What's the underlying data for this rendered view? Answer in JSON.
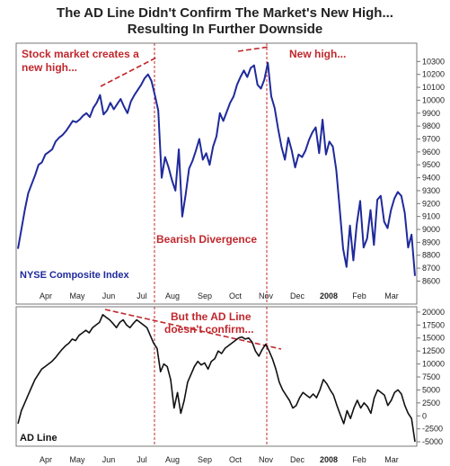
{
  "title_line1": "The AD Line Didn't Confirm The Market's New High...",
  "title_line2": "Resulting In Further Downside",
  "colors": {
    "nyse_line": "#1f2a9b",
    "ad_line": "#111111",
    "annotation": "#c0282d",
    "frame": "#777777"
  },
  "chart_data": [
    {
      "type": "line",
      "label": "NYSE Composite Index",
      "x_tick_labels": [
        "Apr",
        "May",
        "Jun",
        "Jul",
        "Aug",
        "Sep",
        "Oct",
        "Nov",
        "Dec",
        "2008",
        "Feb",
        "Mar"
      ],
      "ylim": [
        8450,
        10400
      ],
      "y_ticks": [
        8600,
        8700,
        8800,
        8900,
        9000,
        9100,
        9200,
        9300,
        9400,
        9500,
        9600,
        9700,
        9800,
        9900,
        10000,
        10100,
        10200,
        10300
      ],
      "grid": false,
      "series": [
        {
          "values": [
            8850,
            9000,
            9150,
            9280,
            9350,
            9420,
            9500,
            9520,
            9580,
            9600,
            9620,
            9680,
            9710,
            9730,
            9760,
            9800,
            9840,
            9830,
            9850,
            9880,
            9900,
            9870,
            9940,
            9980,
            10040,
            9890,
            9920,
            9980,
            9930,
            9970,
            10010,
            9950,
            9900,
            9990,
            10040,
            10080,
            10120,
            10170,
            10200,
            10150,
            10040,
            9920,
            9400,
            9560,
            9480,
            9380,
            9300,
            9620,
            9100,
            9270,
            9470,
            9530,
            9610,
            9700,
            9540,
            9590,
            9500,
            9640,
            9720,
            9900,
            9840,
            9910,
            9980,
            10030,
            10120,
            10180,
            10230,
            10180,
            10250,
            10270,
            10120,
            10090,
            10160,
            10290,
            10030,
            9940,
            9780,
            9640,
            9540,
            9710,
            9610,
            9480,
            9580,
            9560,
            9610,
            9690,
            9750,
            9790,
            9590,
            9850,
            9580,
            9680,
            9640,
            9460,
            9160,
            8850,
            8710,
            9030,
            8760,
            9040,
            9220,
            8860,
            8930,
            9150,
            8880,
            9230,
            9260,
            9060,
            9010,
            9150,
            9240,
            9290,
            9260,
            9130,
            8860,
            8960,
            8640
          ]
        }
      ]
    },
    {
      "type": "line",
      "label": "AD Line",
      "x_tick_labels": [
        "Apr",
        "May",
        "Jun",
        "Jul",
        "Aug",
        "Sep",
        "Oct",
        "Nov",
        "Dec",
        "2008",
        "Feb",
        "Mar"
      ],
      "ylim": [
        -5500,
        20500
      ],
      "y_ticks": [
        -5000,
        -2500,
        0,
        2500,
        5000,
        7500,
        10000,
        12500,
        15000,
        17500,
        20000
      ],
      "grid": false,
      "series": [
        {
          "values": [
            -1500,
            1000,
            2500,
            4000,
            5500,
            7000,
            8000,
            9000,
            9500,
            10000,
            10500,
            11200,
            12000,
            12800,
            13500,
            14000,
            14800,
            14500,
            15500,
            16000,
            16500,
            16000,
            17000,
            17500,
            18000,
            19500,
            19000,
            18500,
            17800,
            17000,
            18000,
            18500,
            17500,
            17000,
            17800,
            18500,
            18000,
            17500,
            17000,
            15500,
            14000,
            13000,
            8500,
            10000,
            9500,
            7000,
            1500,
            4500,
            500,
            3000,
            6500,
            8000,
            9500,
            10500,
            9800,
            10200,
            9000,
            10500,
            11000,
            12500,
            12000,
            13000,
            13500,
            14000,
            14500,
            15000,
            15200,
            14800,
            15000,
            14200,
            12500,
            11500,
            12800,
            13800,
            12500,
            11000,
            9000,
            6500,
            5000,
            4000,
            3000,
            1500,
            2000,
            3500,
            4500,
            4000,
            3500,
            4200,
            3500,
            5000,
            7000,
            6200,
            5000,
            4000,
            2000,
            200,
            -1500,
            1000,
            -500,
            1500,
            3000,
            1500,
            2500,
            1800,
            500,
            3500,
            5000,
            4500,
            4000,
            2000,
            3000,
            4500,
            5000,
            4200,
            2000,
            500,
            -500,
            -5000
          ]
        }
      ]
    }
  ],
  "annotations": {
    "top_left": [
      "Stock market creates a",
      "new high..."
    ],
    "top_right": "New high...",
    "divergence": "Bearish Divergence",
    "bottom": [
      "But the AD Line",
      "doesn't confirm..."
    ]
  }
}
